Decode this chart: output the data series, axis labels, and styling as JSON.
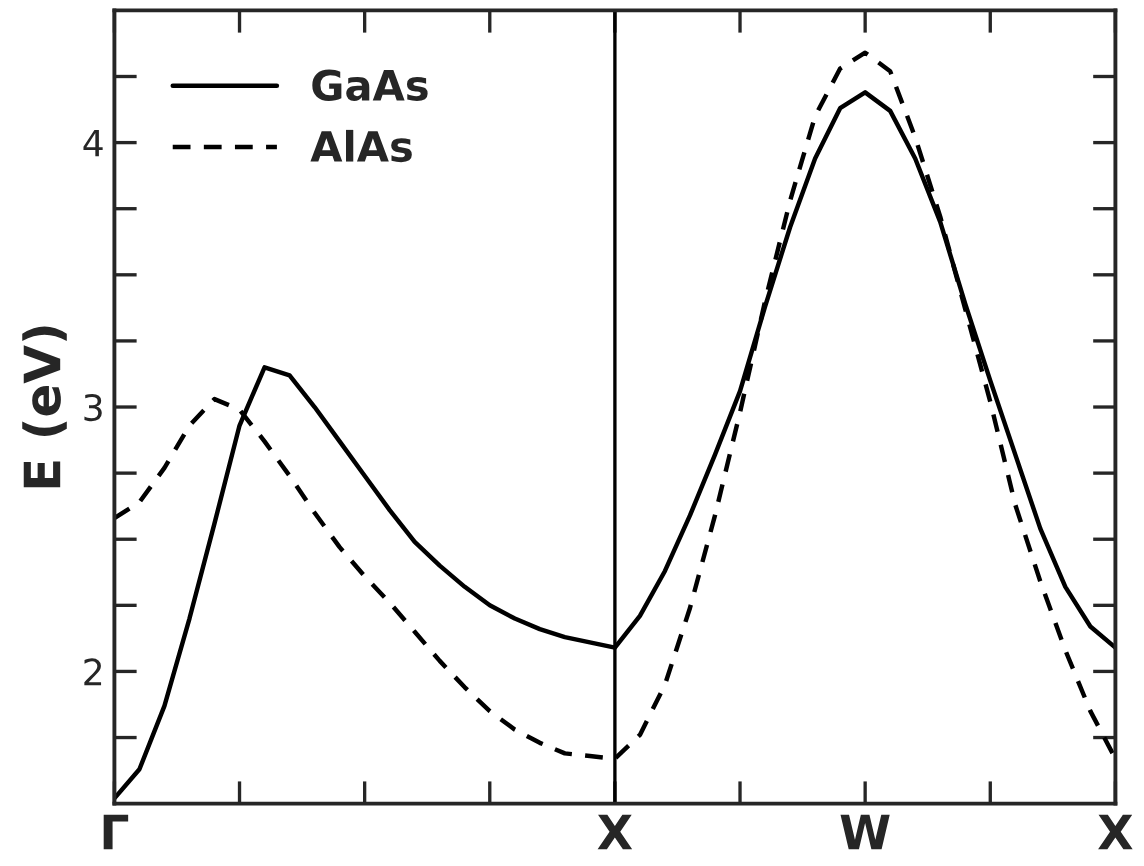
{
  "chart_data": {
    "type": "line",
    "ylabel": "E (eV)",
    "legend": "top left",
    "grid": false,
    "categories": [
      "Γ",
      null,
      null,
      null,
      null,
      null,
      null,
      null,
      null,
      null,
      null,
      null,
      null,
      null,
      null,
      null,
      null,
      null,
      null,
      null,
      "X",
      null,
      null,
      null,
      null,
      null,
      null,
      null,
      null,
      null,
      "W",
      null,
      null,
      null,
      null,
      null,
      null,
      null,
      null,
      null,
      "X"
    ],
    "ylim": [
      1.5,
      4.5
    ],
    "yticks": [
      {
        "value": 1.75,
        "label": null
      },
      2,
      {
        "value": 2.25,
        "label": null
      },
      {
        "value": 2.5,
        "label": null
      },
      {
        "value": 2.75,
        "label": null
      },
      3,
      {
        "value": 3.25,
        "label": null
      },
      {
        "value": 3.5,
        "label": null
      },
      {
        "value": 3.75,
        "label": null
      },
      4,
      {
        "value": 4.25,
        "label": null
      }
    ],
    "ref_lines": [
      {
        "axis": "x",
        "value": "X",
        "label": null,
        "color": "#000000",
        "line_style": "solid"
      }
    ],
    "series": [
      {
        "name": "GaAs",
        "color": "#000000",
        "line_style": "solid",
        "values": [
          1.52,
          1.63,
          1.87,
          2.2,
          2.56,
          2.93,
          3.15,
          3.12,
          3.0,
          2.87,
          2.74,
          2.61,
          2.49,
          2.4,
          2.32,
          2.25,
          2.2,
          2.16,
          2.13,
          2.11,
          2.09,
          2.21,
          2.38,
          2.59,
          2.82,
          3.06,
          3.38,
          3.68,
          3.94,
          4.13,
          4.19,
          4.12,
          3.94,
          3.7,
          3.39,
          3.1,
          2.82,
          2.54,
          2.32,
          2.17,
          2.09
        ]
      },
      {
        "name": "AlAs",
        "color": "#000000",
        "line_style": "dashed",
        "values": [
          2.58,
          2.64,
          2.77,
          2.93,
          3.03,
          2.99,
          2.87,
          2.74,
          2.6,
          2.47,
          2.36,
          2.26,
          2.15,
          2.04,
          1.94,
          1.85,
          1.78,
          1.73,
          1.69,
          1.68,
          1.67,
          1.76,
          1.95,
          2.24,
          2.59,
          2.98,
          3.4,
          3.78,
          4.1,
          4.28,
          4.34,
          4.27,
          4.02,
          3.72,
          3.37,
          3.02,
          2.63,
          2.34,
          2.08,
          1.85,
          1.67
        ]
      }
    ]
  }
}
